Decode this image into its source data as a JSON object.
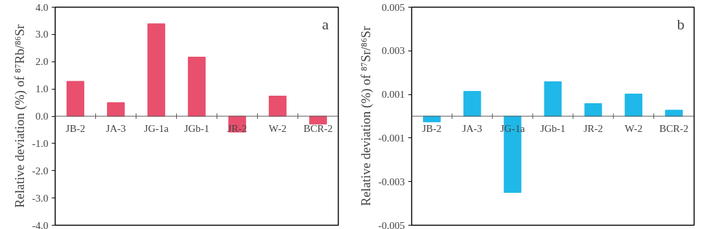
{
  "chart_data": [
    {
      "type": "bar",
      "ylabel": "Relative deviation (%) of ⁸⁷Rb/⁸⁶Sr",
      "annotations": [
        "a"
      ],
      "categories": [
        "JB-2",
        "JA-3",
        "JG-1a",
        "JGb-1",
        "JR-2",
        "W-2",
        "BCR-2"
      ],
      "series": [
        {
          "color": "#e8506e",
          "values": [
            1.28,
            0.5,
            3.39,
            2.17,
            -0.58,
            0.74,
            -0.29
          ]
        }
      ],
      "ylim": [
        -4.0,
        4.0
      ],
      "yticks": [
        {
          "value": -4,
          "label": "-4.0"
        },
        {
          "value": -3,
          "label": "-3.0"
        },
        {
          "value": -2,
          "label": "-2.0"
        },
        {
          "value": -1,
          "label": "-1.0"
        },
        {
          "value": 0,
          "label": "0.0"
        },
        {
          "value": 1,
          "label": "1.0"
        },
        {
          "value": 2,
          "label": "2.0"
        },
        {
          "value": 3,
          "label": "3.0"
        },
        {
          "value": 4,
          "label": "4.0"
        }
      ],
      "grid": false
    },
    {
      "type": "bar",
      "ylabel": "Relative deviation (%) of ⁸⁷Sr/⁸⁶Sr",
      "annotations": [
        "b"
      ],
      "categories": [
        "JB-2",
        "JA-3",
        "JG-1a",
        "JGb-1",
        "JR-2",
        "W-2",
        "BCR-2"
      ],
      "series": [
        {
          "color": "#1fb8e8",
          "values": [
            -0.00026,
            0.00114,
            -0.0035,
            0.00158,
            0.00058,
            0.00102,
            0.00028
          ]
        }
      ],
      "ylim": [
        -0.005,
        0.005
      ],
      "yticks": [
        -0.005,
        -0.003,
        -0.001,
        0.001,
        0.003,
        0.005
      ],
      "grid": false
    }
  ]
}
